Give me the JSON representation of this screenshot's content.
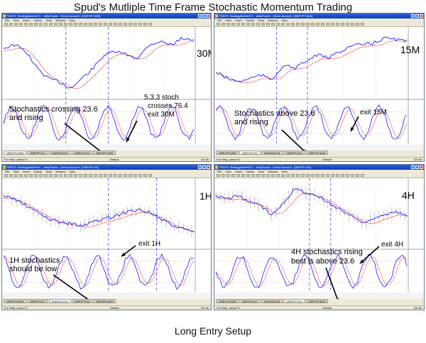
{
  "page_title": "Spud's Mutliple Time Frame Stochastic Momentum Trading",
  "page_footer": "Long Entry Setup",
  "menu_items": [
    "File",
    "View",
    "Insert",
    "Charts",
    "Tools",
    "Window",
    "Help"
  ],
  "tabs": [
    "GBPJPY,M30",
    "GBPJPY,H1",
    "EURUSD,H1",
    "GBPJPY,H4",
    "GBPJPY,M15"
  ],
  "status_left": "For Help, press F1",
  "status_mid": "Default",
  "status_right": "2/0 kb",
  "colors": {
    "price": "#1a1aff",
    "ma": "#ff2020",
    "stoch_k": "#1a1aff",
    "stoch_d": "#ff2020",
    "grid": "#c8c8c8",
    "vline": "#3333ff",
    "titlebar": "#0a3fb8"
  },
  "panels": [
    {
      "id": "30m",
      "timeframe": "30M",
      "window_title": "750079: StrategyBuilderFX - .deltaTrader - Demo Account - [GBPJPY,M30]",
      "annotations": [
        "Stochastics crossing 23.6",
        "and rising",
        "5,3,3 stoch",
        "crosses 76.4",
        "exit 30M"
      ]
    },
    {
      "id": "15m",
      "timeframe": "15M",
      "window_title": "750079: StrategyBuilderFX - .deltaTrader - Demo Account - [GBPJPY,M15]",
      "annotations": [
        "Stochastics above 23.6",
        "and rising",
        "exit 15M"
      ]
    },
    {
      "id": "1h",
      "timeframe": "1H",
      "window_title": "750079: StrategyBuilderFX - .deltaTrader - Demo Account - [GBPJPY,H1]",
      "annotations": [
        "1H stochastics",
        "should be low",
        "exit 1H"
      ]
    },
    {
      "id": "4h",
      "timeframe": "4H",
      "window_title": "750079: StrategyBuilderFX - .deltaTrader - Demo Account - [GBPJPY,H4]",
      "annotations": [
        "4H stochastics rising",
        "best is above 23.6",
        "exit 4H"
      ]
    }
  ]
}
